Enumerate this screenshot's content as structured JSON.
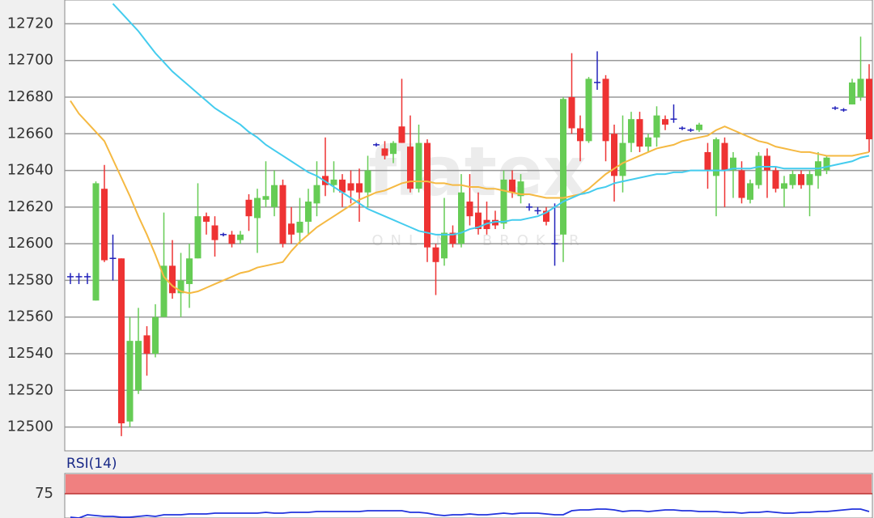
{
  "chart_data": [
    {
      "type": "candlestick",
      "watermark": {
        "brand": "flatex",
        "tagline": "ONLINE BROKER"
      },
      "open": [
        12582,
        12582,
        12582,
        12569,
        12630,
        12592,
        12592,
        12503,
        12520,
        12550,
        12540,
        12560,
        12588,
        12573,
        12578,
        12592,
        12615,
        12610,
        12605,
        12605,
        12602,
        12624,
        12614,
        12624,
        12620,
        12632,
        12611,
        12606,
        12612,
        12622,
        12637,
        12632,
        12635,
        12633,
        12633,
        12628,
        12654,
        12652,
        12649,
        12664,
        12653,
        12630,
        12655,
        12598,
        12592,
        12606,
        12600,
        12623,
        12617,
        12613,
        12613,
        12611,
        12635,
        12626,
        12620,
        12618,
        12618,
        12600,
        12605,
        12680,
        12663,
        12656,
        12688,
        12690,
        12660,
        12637,
        12655,
        12668,
        12653,
        12658,
        12668,
        12668,
        12663,
        12662,
        12662,
        12650,
        12637,
        12655,
        12640,
        12640,
        12624,
        12632,
        12648,
        12640,
        12630,
        12632,
        12638,
        12632,
        12637,
        12640,
        12674,
        12673,
        12676,
        12680,
        12690
      ],
      "high": [
        12584,
        12584,
        12584,
        12634,
        12643,
        12605,
        12592,
        12560,
        12565,
        12555,
        12567,
        12617,
        12602,
        12595,
        12600,
        12633,
        12617,
        12615,
        12606,
        12607,
        12607,
        12627,
        12630,
        12645,
        12640,
        12635,
        12620,
        12625,
        12630,
        12645,
        12658,
        12645,
        12638,
        12640,
        12641,
        12648,
        12655,
        12656,
        12656,
        12690,
        12670,
        12665,
        12657,
        12600,
        12625,
        12610,
        12638,
        12638,
        12628,
        12623,
        12618,
        12640,
        12640,
        12638,
        12622,
        12620,
        12620,
        12622,
        12680,
        12704,
        12670,
        12691,
        12705,
        12692,
        12665,
        12670,
        12672,
        12672,
        12660,
        12675,
        12670,
        12676,
        12664,
        12663,
        12666,
        12655,
        12658,
        12658,
        12650,
        12645,
        12635,
        12650,
        12652,
        12642,
        12637,
        12640,
        12640,
        12640,
        12650,
        12648,
        12675,
        12674,
        12690,
        12713,
        12698
      ],
      "low": [
        12578,
        12578,
        12578,
        12569,
        12590,
        12580,
        12495,
        12500,
        12518,
        12528,
        12538,
        12560,
        12570,
        12560,
        12565,
        12592,
        12605,
        12593,
        12604,
        12598,
        12600,
        12607,
        12595,
        12620,
        12615,
        12598,
        12600,
        12600,
        12605,
        12615,
        12626,
        12628,
        12620,
        12622,
        12612,
        12620,
        12653,
        12646,
        12644,
        12655,
        12628,
        12628,
        12590,
        12572,
        12588,
        12598,
        12598,
        12610,
        12605,
        12605,
        12608,
        12608,
        12625,
        12622,
        12618,
        12616,
        12610,
        12588,
        12590,
        12660,
        12645,
        12655,
        12684,
        12645,
        12623,
        12628,
        12650,
        12650,
        12650,
        12653,
        12662,
        12666,
        12662,
        12661,
        12661,
        12630,
        12615,
        12620,
        12625,
        12622,
        12622,
        12630,
        12625,
        12628,
        12620,
        12630,
        12630,
        12615,
        12630,
        12638,
        12673,
        12672,
        12676,
        12678,
        12650
      ],
      "close": [
        12582,
        12582,
        12582,
        12633,
        12591,
        12592,
        12502,
        12547,
        12547,
        12540,
        12560,
        12588,
        12573,
        12580,
        12592,
        12615,
        12612,
        12602,
        12605,
        12600,
        12605,
        12615,
        12625,
        12626,
        12632,
        12600,
        12605,
        12612,
        12623,
        12632,
        12632,
        12635,
        12628,
        12629,
        12628,
        12640,
        12654,
        12648,
        12655,
        12655,
        12630,
        12655,
        12598,
        12590,
        12606,
        12600,
        12628,
        12615,
        12608,
        12608,
        12610,
        12635,
        12628,
        12634,
        12620,
        12618,
        12612,
        12600,
        12679,
        12663,
        12656,
        12690,
        12688,
        12656,
        12637,
        12655,
        12668,
        12653,
        12658,
        12670,
        12665,
        12668,
        12663,
        12662,
        12665,
        12640,
        12657,
        12640,
        12647,
        12625,
        12633,
        12648,
        12640,
        12630,
        12633,
        12638,
        12632,
        12638,
        12645,
        12647,
        12674,
        12673,
        12688,
        12690,
        12657
      ],
      "up_color": "#66cc55",
      "down_color": "#ee3333",
      "doji_color": "#2222bb",
      "series": [
        {
          "color": "#f5b942",
          "values": [
            12678,
            12671,
            12666,
            12661,
            12656,
            12646,
            12636,
            12626,
            12615,
            12605,
            12594,
            12582,
            12577,
            12574,
            12573,
            12574,
            12576,
            12578,
            12580,
            12582,
            12584,
            12585,
            12587,
            12588,
            12589,
            12590,
            12596,
            12601,
            12605,
            12609,
            12612,
            12615,
            12618,
            12621,
            12624,
            12626,
            12628,
            12629,
            12631,
            12633,
            12634,
            12634,
            12634,
            12633,
            12633,
            12632,
            12632,
            12631,
            12631,
            12630,
            12630,
            12629,
            12628,
            12627,
            12627,
            12626,
            12625,
            12625,
            12625,
            12626,
            12627,
            12630,
            12634,
            12638,
            12641,
            12644,
            12646,
            12648,
            12650,
            12652,
            12653,
            12654,
            12656,
            12657,
            12658,
            12659,
            12662,
            12664,
            12662,
            12660,
            12658,
            12656,
            12655,
            12653,
            12652,
            12651,
            12650,
            12650,
            12649,
            12648,
            12648,
            12648,
            12648,
            12649,
            12650
          ]
        },
        {
          "color": "#44ccee",
          "values": [
            null,
            null,
            null,
            null,
            null,
            12731,
            12726,
            12721,
            12716,
            12710,
            12704,
            12699,
            12694,
            12690,
            12686,
            12682,
            12678,
            12674,
            12671,
            12668,
            12665,
            12661,
            12658,
            12654,
            12651,
            12648,
            12645,
            12642,
            12639,
            12637,
            12634,
            12631,
            12628,
            12625,
            12622,
            12619,
            12617,
            12615,
            12613,
            12611,
            12609,
            12607,
            12606,
            12605,
            12605,
            12605,
            12606,
            12608,
            12609,
            12611,
            12612,
            12612,
            12613,
            12613,
            12614,
            12615,
            12617,
            12620,
            12623,
            12625,
            12627,
            12628,
            12630,
            12631,
            12633,
            12634,
            12635,
            12636,
            12637,
            12638,
            12638,
            12639,
            12639,
            12640,
            12640,
            12640,
            12640,
            12640,
            12641,
            12641,
            12641,
            12642,
            12642,
            12642,
            12641,
            12641,
            12641,
            12641,
            12641,
            12642,
            12643,
            12644,
            12645,
            12647,
            12648
          ]
        }
      ],
      "ylim": [
        12487,
        12733
      ],
      "yticks": [
        12500,
        12520,
        12540,
        12560,
        12580,
        12600,
        12620,
        12640,
        12660,
        12680,
        12700,
        12720
      ],
      "grid": true
    },
    {
      "type": "line",
      "title": "RSI(14)",
      "color": "#2233dd",
      "band_color": "#f08080",
      "values": [
        46,
        45,
        49,
        48,
        47,
        47,
        46,
        46,
        47,
        48,
        47,
        49,
        49,
        49,
        50,
        50,
        50,
        51,
        51,
        51,
        51,
        51,
        51,
        52,
        51,
        51,
        52,
        52,
        52,
        53,
        53,
        53,
        53,
        53,
        53,
        54,
        54,
        54,
        54,
        54,
        52,
        52,
        51,
        49,
        48,
        49,
        49,
        50,
        49,
        49,
        50,
        51,
        50,
        51,
        51,
        51,
        50,
        49,
        49,
        54,
        55,
        55,
        56,
        56,
        55,
        53,
        54,
        54,
        53,
        54,
        55,
        55,
        54,
        54,
        53,
        53,
        53,
        52,
        52,
        51,
        52,
        52,
        53,
        52,
        51,
        51,
        52,
        52,
        53,
        53,
        54,
        55,
        56,
        56,
        53
      ],
      "ylim": [
        45,
        100
      ],
      "yticks": [
        75
      ]
    }
  ]
}
